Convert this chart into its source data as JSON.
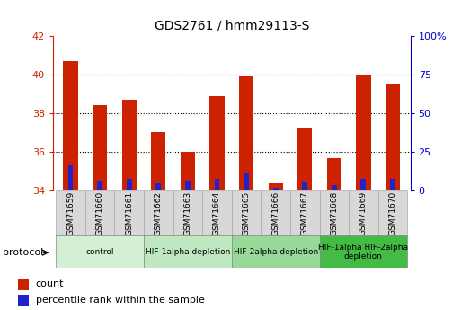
{
  "title": "GDS2761 / hmm29113-S",
  "samples": [
    "GSM71659",
    "GSM71660",
    "GSM71661",
    "GSM71662",
    "GSM71663",
    "GSM71664",
    "GSM71665",
    "GSM71666",
    "GSM71667",
    "GSM71668",
    "GSM71669",
    "GSM71670"
  ],
  "count_values": [
    40.7,
    38.4,
    38.7,
    37.0,
    36.0,
    38.9,
    39.9,
    34.4,
    37.2,
    35.7,
    40.0,
    39.5
  ],
  "percentile_values": [
    1.3,
    0.5,
    0.6,
    0.4,
    0.5,
    0.6,
    0.9,
    0.15,
    0.45,
    0.3,
    0.6,
    0.6
  ],
  "ymin": 34,
  "ymax": 42,
  "yticks_left": [
    34,
    36,
    38,
    40,
    42
  ],
  "yticks_right_labels": [
    "0",
    "25",
    "50",
    "75",
    "100%"
  ],
  "yticks_right_pos": [
    34,
    36,
    38,
    40,
    42
  ],
  "bar_color": "#cc2200",
  "blue_color": "#2222cc",
  "protocol_groups": [
    {
      "label": "control",
      "start": 0,
      "end": 2,
      "color": "#d4f0d4"
    },
    {
      "label": "HIF-1alpha depletion",
      "start": 3,
      "end": 5,
      "color": "#c0e8c0"
    },
    {
      "label": "HIF-2alpha depletion",
      "start": 6,
      "end": 8,
      "color": "#98d898"
    },
    {
      "label": "HIF-1alpha HIF-2alpha\ndepletion",
      "start": 9,
      "end": 11,
      "color": "#44bb44"
    }
  ],
  "legend_count_label": "count",
  "legend_pct_label": "percentile rank within the sample",
  "protocol_label": "protocol",
  "tick_color_left": "#cc2200",
  "tick_color_right": "#0000cc",
  "bar_width": 0.5,
  "blue_bar_width": 0.18
}
